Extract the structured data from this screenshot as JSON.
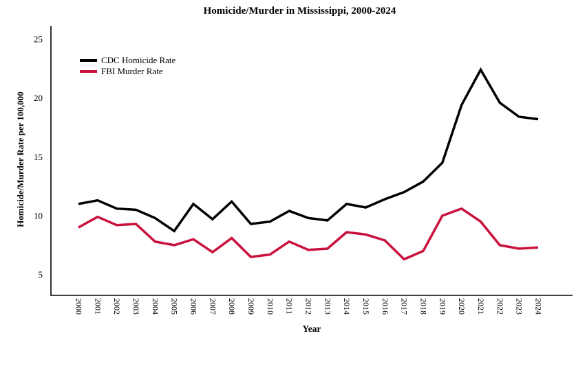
{
  "chart_data": {
    "type": "line",
    "title": "Homicide/Murder in Mississippi, 2000-2024",
    "xlabel": "Year",
    "ylabel": "Homicide/Murder Rate per 100,000",
    "x": [
      2000,
      2001,
      2002,
      2003,
      2004,
      2005,
      2006,
      2007,
      2008,
      2009,
      2010,
      2011,
      2012,
      2013,
      2014,
      2015,
      2016,
      2017,
      2018,
      2019,
      2020,
      2021,
      2022,
      2023,
      2024
    ],
    "series": [
      {
        "name": "CDC Homicide Rate",
        "color": "#000000",
        "values": [
          11.0,
          11.3,
          10.6,
          10.5,
          9.8,
          8.7,
          11.0,
          9.7,
          11.2,
          9.3,
          9.5,
          10.4,
          9.8,
          9.6,
          11.0,
          10.7,
          11.4,
          12.0,
          12.9,
          14.5,
          19.4,
          22.4,
          19.6,
          18.4,
          18.2
        ]
      },
      {
        "name": "FBI Murder Rate",
        "color": "#C9113C",
        "values": [
          9.0,
          9.9,
          9.2,
          9.3,
          7.8,
          7.5,
          8.0,
          6.9,
          8.1,
          6.5,
          6.7,
          7.8,
          7.1,
          7.2,
          8.6,
          8.4,
          7.9,
          6.3,
          7.0,
          10.0,
          10.6,
          9.5,
          7.5,
          7.2,
          7.3
        ]
      }
    ],
    "ylim": [
      5,
      25
    ],
    "yticks": [
      5,
      10,
      15,
      20,
      25
    ],
    "grid": false,
    "legend_position": "top-left-inside",
    "axis_color": "#000000"
  }
}
